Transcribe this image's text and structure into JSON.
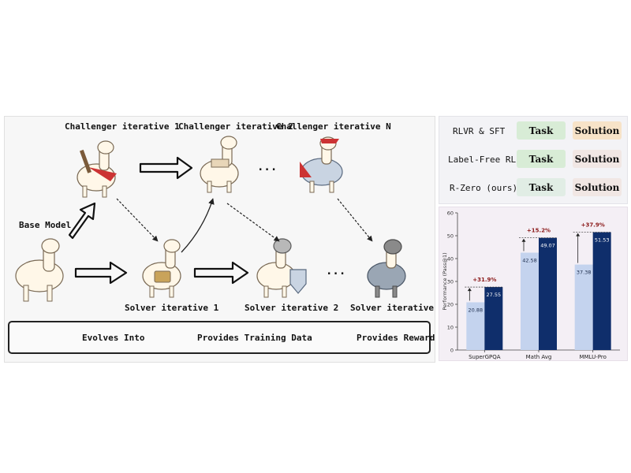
{
  "diagram": {
    "challenger_labels": [
      "Challenger iterative 1",
      "Challenger iterative 2",
      "Challenger iterative N"
    ],
    "solver_labels": [
      "Solver iterative 1",
      "Solver iterative 2",
      "Solver iterative N"
    ],
    "base_model_label": "Base Model",
    "ellipsis": "...",
    "legend": {
      "evolves": "Evolves Into",
      "training": "Provides Training Data",
      "reward": "Provides Reward"
    }
  },
  "comparison": {
    "rows": [
      {
        "label": "RLVR & SFT",
        "task": "Task",
        "solution": "Solution",
        "task_color": "#d8ecd6",
        "solution_color": "#f7e3c8"
      },
      {
        "label": "Label-Free RL",
        "task": "Task",
        "solution": "Solution",
        "task_color": "#d8ecd6",
        "solution_color": "#f1e7e4"
      },
      {
        "label": "R-Zero (ours)",
        "task": "Task",
        "solution": "Solution",
        "task_color": "#e1ede5",
        "solution_color": "#f1e7e4"
      }
    ]
  },
  "chart_data": {
    "type": "bar",
    "categories": [
      "SuperGPQA",
      "Math Avg",
      "MMLU-Pro"
    ],
    "series": [
      {
        "values": [
          20.88,
          42.58,
          37.38
        ],
        "color": "#c4d3ee"
      },
      {
        "values": [
          27.55,
          49.07,
          51.53
        ],
        "color": "#0f2e6b"
      }
    ],
    "improvements": [
      "+31.9%",
      "+15.2%",
      "+37.9%"
    ],
    "ylabel": "Performance (Pass@1)",
    "ylim": [
      0,
      60
    ],
    "yticks": [
      0,
      10,
      20,
      30,
      40,
      50,
      60
    ],
    "grid": false
  }
}
